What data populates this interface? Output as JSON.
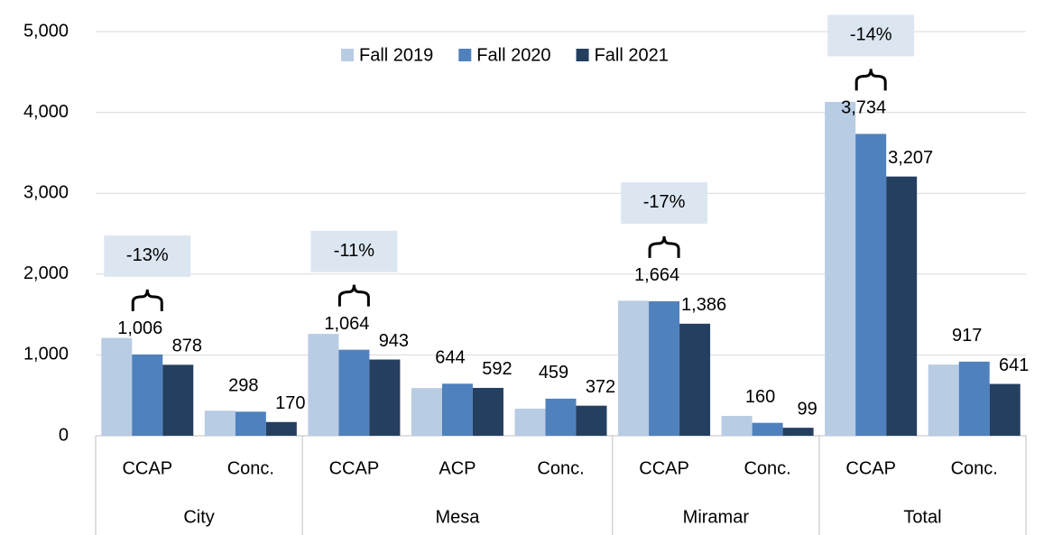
{
  "chart_data": {
    "type": "bar",
    "groups": [
      {
        "name": "City",
        "categories": [
          "CCAP",
          "Conc."
        ]
      },
      {
        "name": "Mesa",
        "categories": [
          "CCAP",
          "ACP",
          "Conc."
        ]
      },
      {
        "name": "Miramar",
        "categories": [
          "CCAP",
          "Conc."
        ]
      },
      {
        "name": "Total",
        "categories": [
          "CCAP",
          "Conc."
        ]
      }
    ],
    "series": [
      {
        "name": "Fall 2019",
        "color": "#b8cce4",
        "values": [
          1210,
          310,
          1260,
          590,
          335,
          1670,
          245,
          4130,
          880
        ]
      },
      {
        "name": "Fall 2020",
        "color": "#4f81bd",
        "values": [
          1006,
          298,
          1064,
          644,
          459,
          1664,
          160,
          3734,
          917
        ],
        "value_labels": [
          "1,006",
          "298",
          "1,064",
          "644",
          "459",
          "1,664",
          "160",
          "3,734",
          "917"
        ]
      },
      {
        "name": "Fall 2021",
        "color": "#243f60",
        "values": [
          878,
          170,
          943,
          592,
          372,
          1386,
          99,
          3207,
          641
        ],
        "value_labels": [
          "878",
          "170",
          "943",
          "592",
          "372",
          "1,386",
          "99",
          "3,207",
          "641"
        ]
      }
    ],
    "annotations": [
      "-13%",
      "-11%",
      "-17%",
      "-14%"
    ],
    "ylim": [
      0,
      5000
    ],
    "yticks": [
      0,
      {
        "value": 1000,
        "label": "1,000"
      },
      {
        "value": 2000,
        "label": "2,000"
      },
      {
        "value": 3000,
        "label": "3,000"
      },
      {
        "value": 4000,
        "label": "4,000"
      },
      {
        "value": 5000,
        "label": "5,000"
      }
    ],
    "grid": true,
    "legend": "top"
  }
}
